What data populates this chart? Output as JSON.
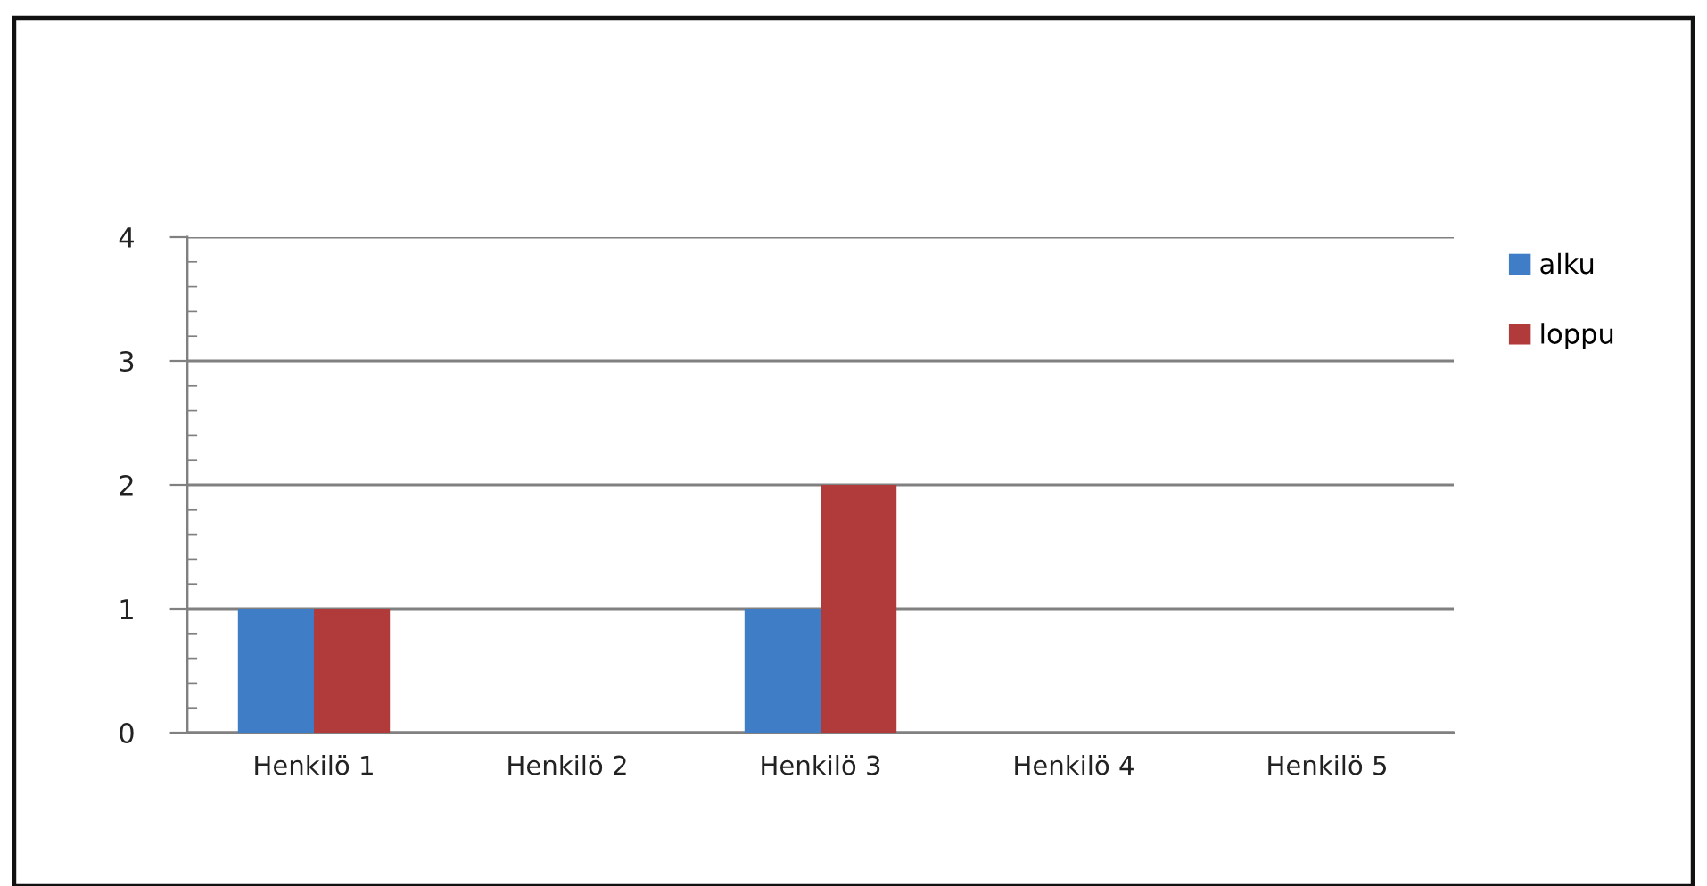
{
  "chart_data": {
    "type": "bar",
    "categories": [
      "Henkilö 1",
      "Henkilö 2",
      "Henkilö 3",
      "Henkilö 4",
      "Henkilö 5"
    ],
    "series": [
      {
        "name": "alku",
        "color": "#3f7ec6",
        "values": [
          1,
          0,
          1,
          0,
          0
        ]
      },
      {
        "name": "loppu",
        "color": "#b13b3a",
        "values": [
          1,
          0,
          2,
          0,
          0
        ]
      }
    ],
    "ylim": [
      0,
      4
    ],
    "yticks": [
      0,
      {
        "value": 0.2,
        "label": null
      },
      {
        "value": 0.4,
        "label": null
      },
      {
        "value": 0.6,
        "label": null
      },
      {
        "value": 0.8,
        "label": null
      },
      1,
      {
        "value": 1.2,
        "label": null
      },
      {
        "value": 1.4,
        "label": null
      },
      {
        "value": 1.6,
        "label": null
      },
      {
        "value": 1.8,
        "label": null
      },
      2,
      {
        "value": 2.2,
        "label": null
      },
      {
        "value": 2.4,
        "label": null
      },
      {
        "value": 2.6,
        "label": null
      },
      {
        "value": 2.8,
        "label": null
      },
      3,
      {
        "value": 3.2,
        "label": null
      },
      {
        "value": 3.4,
        "label": null
      },
      {
        "value": 3.6,
        "label": null
      },
      {
        "value": 3.8,
        "label": null
      },
      4
    ],
    "grid": "y",
    "legend": "right"
  }
}
